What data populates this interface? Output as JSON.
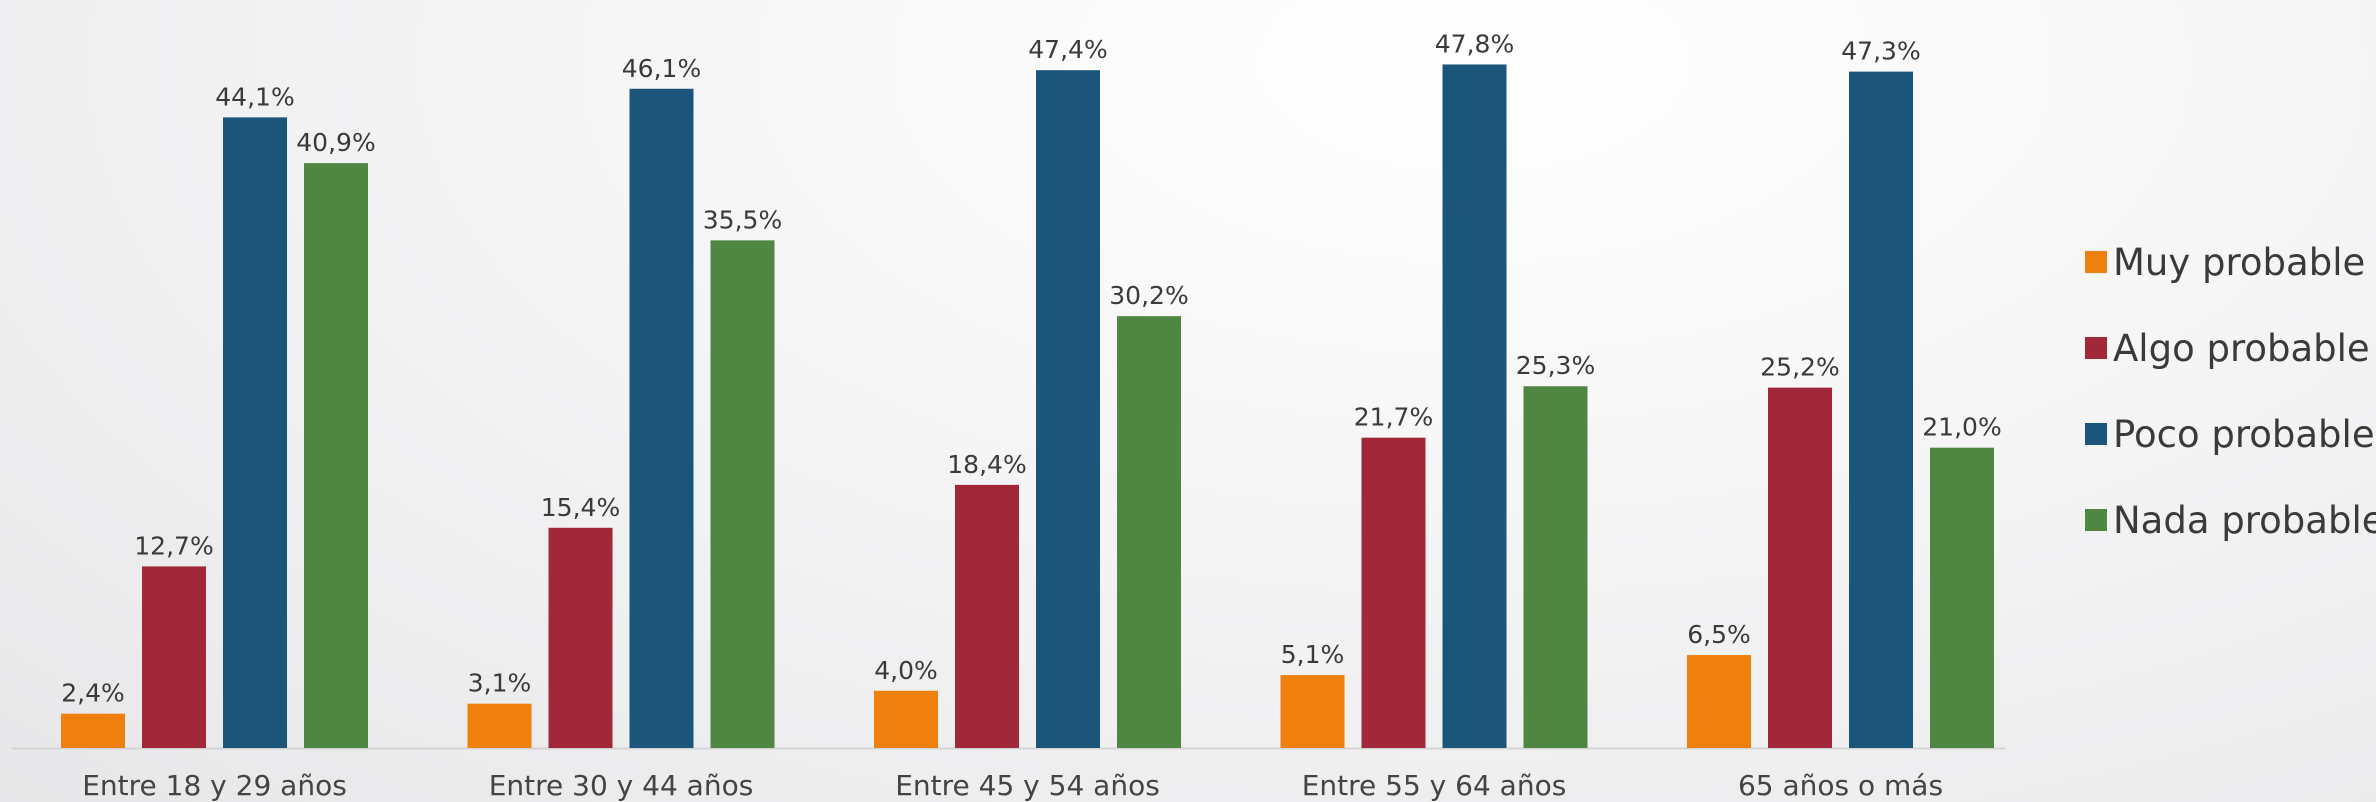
{
  "chart_data": {
    "type": "bar",
    "categories": [
      "Entre 18 y 29 años",
      "Entre 30 y 44 años",
      "Entre 45 y 54 años",
      "Entre 55 y 64 años",
      "65 años o más"
    ],
    "series": [
      {
        "name": "Muy probable",
        "color": "#F0800E",
        "values": [
          2.4,
          3.1,
          4.0,
          5.1,
          6.5
        ],
        "labels": [
          "2,4%",
          "3,1%",
          "4,0%",
          "5,1%",
          "6,5%"
        ]
      },
      {
        "name": "Algo probable",
        "color": "#A12838",
        "values": [
          12.7,
          15.4,
          18.4,
          21.7,
          25.2
        ],
        "labels": [
          "12,7%",
          "15,4%",
          "18,4%",
          "21,7%",
          "25,2%"
        ]
      },
      {
        "name": "Poco probable",
        "color": "#1B5579",
        "values": [
          44.1,
          46.1,
          47.4,
          47.8,
          47.3
        ],
        "labels": [
          "44,1%",
          "46,1%",
          "47,4%",
          "47,8%",
          "47,3%"
        ]
      },
      {
        "name": "Nada probable",
        "color": "#4E8642",
        "values": [
          40.9,
          35.5,
          30.2,
          25.3,
          21.0
        ],
        "labels": [
          "40,9%",
          "35,5%",
          "30,2%",
          "25,3%",
          "21,0%"
        ]
      }
    ],
    "legend_position": "right",
    "grid": false
  }
}
